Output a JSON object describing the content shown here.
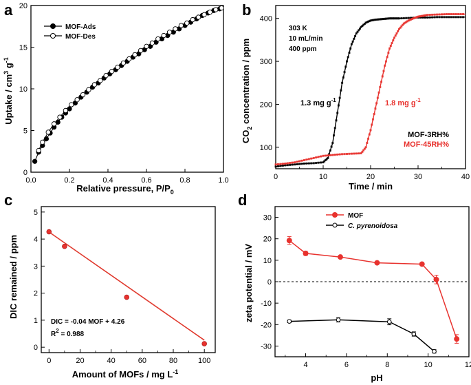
{
  "chart_data": [
    {
      "panel": "a",
      "type": "line",
      "xlabel": "Relative pressure, P/P",
      "xlabel_sub": "0",
      "ylabel": "Uptake / cm",
      "ylabel_sup": "3",
      "ylabel_tail": " g",
      "ylabel_tail_sup": "-1",
      "xlim": [
        0,
        1.0
      ],
      "ylim": [
        0,
        20
      ],
      "xticks": [
        "0.0",
        "0.2",
        "0.4",
        "0.6",
        "0.8",
        "1.0"
      ],
      "xtick_values": [
        0,
        0.2,
        0.4,
        0.6,
        0.8,
        1.0
      ],
      "yticks": [
        "0",
        "5",
        "10",
        "15",
        "20"
      ],
      "ytick_values": [
        0,
        5,
        10,
        15,
        20
      ],
      "legend": [
        "MOF-Ads",
        "MOF-Des"
      ],
      "series": [
        {
          "name": "MOF-Ads",
          "marker": "filled",
          "color": "#000000",
          "x": [
            0.02,
            0.04,
            0.06,
            0.08,
            0.1,
            0.12,
            0.14,
            0.16,
            0.18,
            0.2,
            0.23,
            0.26,
            0.29,
            0.32,
            0.35,
            0.38,
            0.41,
            0.44,
            0.47,
            0.5,
            0.53,
            0.56,
            0.59,
            0.62,
            0.65,
            0.68,
            0.71,
            0.74,
            0.77,
            0.8,
            0.83,
            0.86,
            0.89,
            0.92,
            0.95,
            0.98
          ],
          "y": [
            1.3,
            2.4,
            3.2,
            4.0,
            4.7,
            5.4,
            6.0,
            6.6,
            7.1,
            7.6,
            8.3,
            9.0,
            9.6,
            10.2,
            10.7,
            11.3,
            11.8,
            12.3,
            12.8,
            13.3,
            13.8,
            14.2,
            14.7,
            15.1,
            15.6,
            16.0,
            16.4,
            16.8,
            17.2,
            17.6,
            18.0,
            18.4,
            18.8,
            19.1,
            19.4,
            19.6
          ]
        },
        {
          "name": "MOF-Des",
          "marker": "open",
          "color": "#000000",
          "x": [
            0.99,
            0.96,
            0.93,
            0.9,
            0.87,
            0.84,
            0.81,
            0.78,
            0.75,
            0.72,
            0.69,
            0.66,
            0.63,
            0.6,
            0.57,
            0.54,
            0.51,
            0.48,
            0.45,
            0.42,
            0.39,
            0.36,
            0.33,
            0.3,
            0.27,
            0.24,
            0.21,
            0.18,
            0.15,
            0.12,
            0.09,
            0.06,
            0.04
          ],
          "y": [
            19.7,
            19.5,
            19.2,
            18.9,
            18.6,
            18.3,
            17.9,
            17.6,
            17.2,
            16.8,
            16.4,
            16.0,
            15.5,
            15.1,
            14.6,
            14.1,
            13.6,
            13.1,
            12.6,
            12.1,
            11.6,
            11.0,
            10.5,
            9.9,
            9.3,
            8.7,
            8.1,
            7.4,
            6.6,
            5.8,
            4.8,
            3.6,
            2.6
          ]
        }
      ]
    },
    {
      "panel": "b",
      "type": "line",
      "xlabel": "Time / min",
      "ylabel": "CO",
      "ylabel_sub": "2",
      "ylabel_tail": " concentration / ppm",
      "xlim": [
        0,
        40
      ],
      "ylim": [
        50,
        430
      ],
      "xticks": [
        "0",
        "10",
        "20",
        "30",
        "40"
      ],
      "xtick_values": [
        0,
        10,
        20,
        30,
        40
      ],
      "yticks": [
        "100",
        "200",
        "300",
        "400"
      ],
      "ytick_values": [
        100,
        200,
        300,
        400
      ],
      "conditions": [
        "303 K",
        "10 mL/min",
        "400 ppm"
      ],
      "annotations": [
        {
          "text": "1.3 mg g",
          "sup": "-1",
          "color": "#000000",
          "at": [
            5,
            140
          ]
        },
        {
          "text": "1.8 mg g",
          "sup": "-1",
          "color": "#e8322e",
          "at": [
            23,
            140
          ]
        }
      ],
      "legend": [
        "MOF-3RH%",
        "MOF-45RH%"
      ],
      "series": [
        {
          "name": "MOF-3RH%",
          "color": "#000000",
          "x": [
            0,
            2,
            4,
            6,
            8,
            10,
            11,
            12,
            13,
            14,
            15,
            16,
            17,
            18,
            19,
            20,
            21,
            22,
            23,
            24,
            25,
            26,
            28,
            30,
            32,
            34,
            36,
            38,
            40
          ],
          "y": [
            55,
            58,
            60,
            62,
            63,
            65,
            75,
            110,
            180,
            250,
            300,
            340,
            365,
            380,
            390,
            395,
            397,
            398,
            399,
            400,
            400,
            400,
            401,
            402,
            402,
            403,
            403,
            403,
            403
          ]
        },
        {
          "name": "MOF-45RH%",
          "color": "#e8322e",
          "x": [
            0,
            2,
            4,
            6,
            8,
            10,
            12,
            14,
            16,
            18,
            19,
            20,
            21,
            22,
            23,
            24,
            25,
            26,
            27,
            28,
            29,
            30,
            31,
            32,
            34,
            36,
            38,
            40
          ],
          "y": [
            60,
            62,
            65,
            70,
            75,
            80,
            82,
            84,
            85,
            86,
            100,
            140,
            190,
            240,
            290,
            330,
            355,
            375,
            388,
            395,
            400,
            404,
            406,
            408,
            409,
            410,
            410,
            410
          ]
        }
      ]
    },
    {
      "panel": "c",
      "type": "scatter",
      "xlabel": "Amount of MOFs / mg L",
      "xlabel_sup": "-1",
      "ylabel": "DIC remained / ppm",
      "xlim": [
        -5,
        107
      ],
      "ylim": [
        -0.2,
        5.2
      ],
      "xticks": [
        "0",
        "20",
        "40",
        "60",
        "80",
        "100"
      ],
      "xtick_values": [
        0,
        20,
        40,
        60,
        80,
        100
      ],
      "yticks": [
        "0",
        "1",
        "2",
        "3",
        "4",
        "5"
      ],
      "ytick_values": [
        0,
        1,
        2,
        3,
        4,
        5
      ],
      "points": {
        "x": [
          0,
          10,
          50,
          100
        ],
        "y": [
          4.27,
          3.73,
          1.85,
          0.13
        ],
        "err": [
          0.03,
          0.08,
          0.08,
          0.05
        ]
      },
      "fit": {
        "slope": -0.04,
        "intercept": 4.26,
        "x": [
          0,
          100
        ]
      },
      "equation": "DIC = -0.04 MOF + 4.26",
      "r2_label": "R",
      "r2_sup": "2",
      "r2_value": " = 0.988"
    },
    {
      "panel": "d",
      "type": "line",
      "xlabel": "pH",
      "ylabel": "zeta potential / mV",
      "xlim": [
        2.5,
        12
      ],
      "ylim": [
        -35,
        35
      ],
      "xticks": [
        "4",
        "6",
        "8",
        "10",
        "12"
      ],
      "xtick_values": [
        4,
        6,
        8,
        10,
        12
      ],
      "yticks": [
        "-30",
        "-20",
        "-10",
        "0",
        "10",
        "20",
        "30"
      ],
      "ytick_values": [
        -30,
        -20,
        -10,
        0,
        10,
        20,
        30
      ],
      "zero_line": 0,
      "legend": [
        "MOF",
        "C. pyrenoidosa"
      ],
      "series": [
        {
          "name": "MOF",
          "color": "#e8322e",
          "x": [
            3.2,
            4.0,
            5.7,
            7.5,
            9.7,
            10.4,
            11.4
          ],
          "y": [
            19.2,
            13.2,
            11.5,
            8.8,
            8.2,
            1.0,
            -26.7
          ],
          "err": [
            1.8,
            1.0,
            0.5,
            0.4,
            0.5,
            2.0,
            2.0
          ]
        },
        {
          "name": "C. pyrenoidosa",
          "color": "#000000",
          "x": [
            3.2,
            5.6,
            8.1,
            9.3,
            10.3
          ],
          "y": [
            -18.5,
            -17.8,
            -18.7,
            -24.4,
            -32.5
          ],
          "err": [
            0.6,
            1.0,
            1.4,
            1.0,
            0.8
          ]
        }
      ]
    }
  ]
}
